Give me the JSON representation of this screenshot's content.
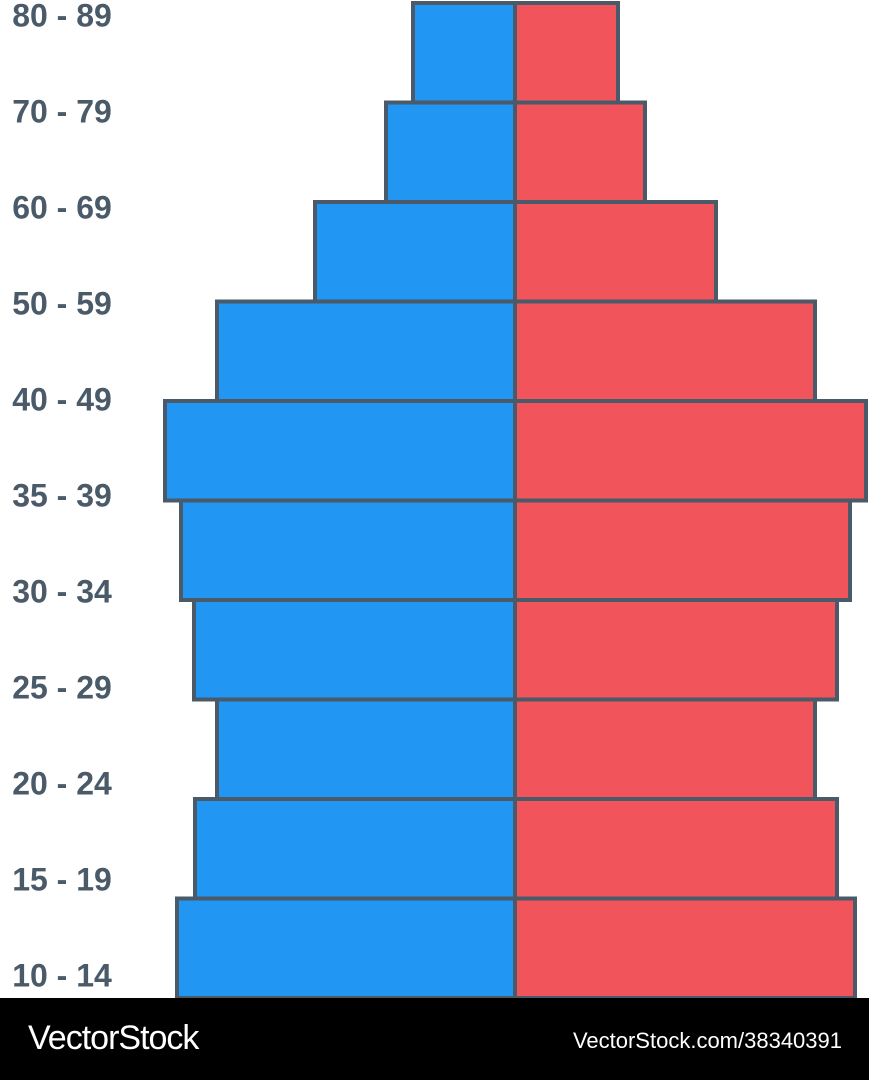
{
  "chart_data": {
    "type": "population-pyramid",
    "categories": [
      "80 - 89",
      "70 - 79",
      "60 - 69",
      "50 - 59",
      "40 - 49",
      "35 - 39",
      "30 - 34",
      "25 - 29",
      "20 - 24",
      "15 - 19",
      "10 - 14"
    ],
    "series": [
      {
        "color": "#2196f3",
        "values": [
          102,
          129,
          200,
          298,
          350,
          334,
          321,
          298,
          320,
          338,
          null
        ]
      },
      {
        "color": "#f2545b",
        "values": [
          103,
          130,
          201,
          300,
          351,
          335,
          322,
          300,
          322,
          340,
          null
        ]
      }
    ]
  },
  "watermark": {
    "brand": "VectorStock",
    "url": "VectorStock.com/38340391"
  }
}
